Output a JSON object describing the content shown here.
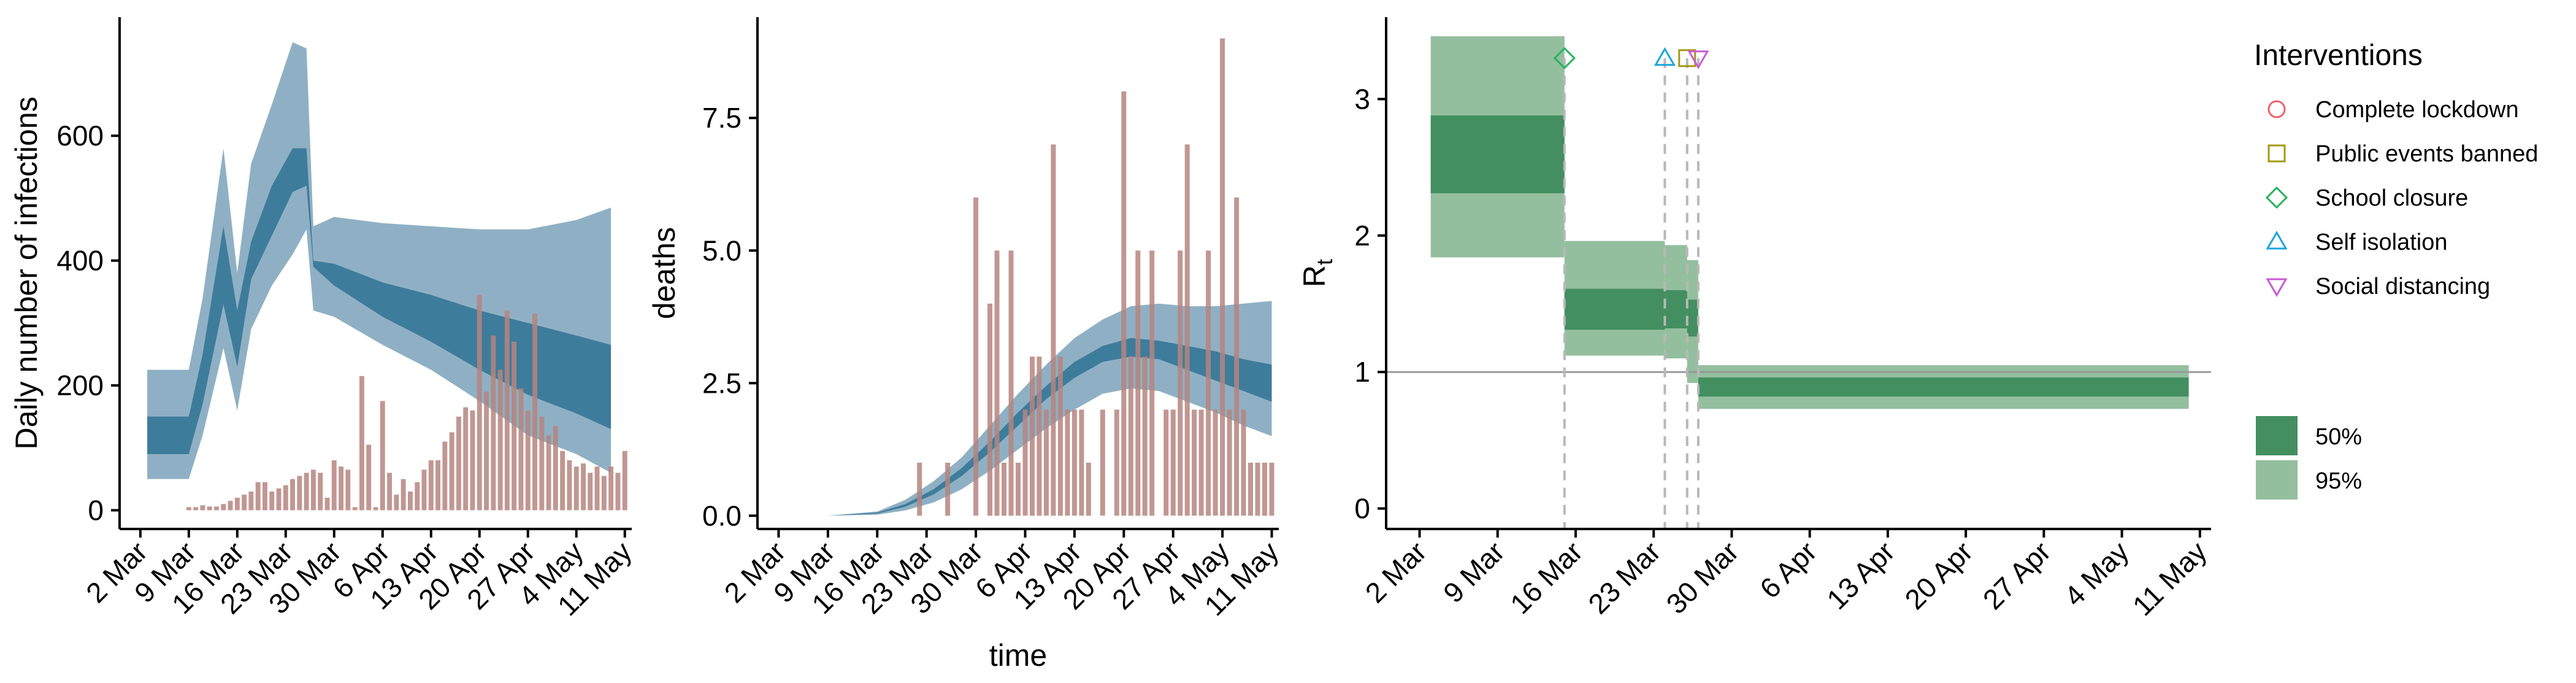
{
  "chart_data": [
    {
      "type": "area",
      "ylabel": "Daily number of infections",
      "xlabel": "",
      "ylim": [
        -30,
        790
      ],
      "yticks": [
        0,
        200,
        400,
        600
      ],
      "xlim": [
        "2020-02-28",
        "2020-05-12"
      ],
      "xticks": [
        "2020-03-02",
        "2020-03-09",
        "2020-03-16",
        "2020-03-23",
        "2020-03-30",
        "2020-04-06",
        "2020-04-13",
        "2020-04-20",
        "2020-04-27",
        "2020-05-04",
        "2020-05-11"
      ],
      "xtick_labels": [
        "2 Mar",
        "9 Mar",
        "16 Mar",
        "23 Mar",
        "30 Mar",
        "6 Apr",
        "13 Apr",
        "20 Apr",
        "27 Apr",
        "4 May",
        "11 May"
      ],
      "colors": {
        "band95": "#8fb0c4",
        "band50": "#3e7c9b",
        "bars": "#b5857f"
      },
      "bands": {
        "dates": [
          "2020-03-03",
          "2020-03-09",
          "2020-03-11",
          "2020-03-14",
          "2020-03-16",
          "2020-03-18",
          "2020-03-21",
          "2020-03-24",
          "2020-03-26",
          "2020-03-27",
          "2020-03-30",
          "2020-04-06",
          "2020-04-13",
          "2020-04-20",
          "2020-04-27",
          "2020-05-04",
          "2020-05-09"
        ],
        "lo95": [
          50,
          50,
          120,
          260,
          160,
          290,
          360,
          410,
          450,
          320,
          310,
          265,
          225,
          175,
          120,
          90,
          60
        ],
        "hi95": [
          225,
          225,
          340,
          580,
          380,
          555,
          650,
          750,
          740,
          455,
          470,
          460,
          455,
          450,
          450,
          465,
          485
        ],
        "lo50": [
          90,
          90,
          170,
          330,
          230,
          370,
          440,
          510,
          520,
          390,
          360,
          310,
          270,
          225,
          185,
          155,
          130
        ],
        "hi50": [
          150,
          150,
          250,
          455,
          320,
          430,
          520,
          580,
          580,
          400,
          395,
          365,
          345,
          320,
          300,
          280,
          265
        ]
      },
      "bars": {
        "dates": [
          "2020-03-09",
          "2020-03-10",
          "2020-03-11",
          "2020-03-12",
          "2020-03-13",
          "2020-03-14",
          "2020-03-15",
          "2020-03-16",
          "2020-03-17",
          "2020-03-18",
          "2020-03-19",
          "2020-03-20",
          "2020-03-21",
          "2020-03-22",
          "2020-03-23",
          "2020-03-24",
          "2020-03-25",
          "2020-03-26",
          "2020-03-27",
          "2020-03-28",
          "2020-03-29",
          "2020-03-30",
          "2020-03-31",
          "2020-04-01",
          "2020-04-02",
          "2020-04-03",
          "2020-04-04",
          "2020-04-05",
          "2020-04-06",
          "2020-04-07",
          "2020-04-08",
          "2020-04-09",
          "2020-04-10",
          "2020-04-11",
          "2020-04-12",
          "2020-04-13",
          "2020-04-14",
          "2020-04-15",
          "2020-04-16",
          "2020-04-17",
          "2020-04-18",
          "2020-04-19",
          "2020-04-20",
          "2020-04-21",
          "2020-04-22",
          "2020-04-23",
          "2020-04-24",
          "2020-04-25",
          "2020-04-26",
          "2020-04-27",
          "2020-04-28",
          "2020-04-29",
          "2020-04-30",
          "2020-05-01",
          "2020-05-02",
          "2020-05-03",
          "2020-05-04",
          "2020-05-05",
          "2020-05-06",
          "2020-05-07",
          "2020-05-08",
          "2020-05-09",
          "2020-05-10",
          "2020-05-11"
        ],
        "values": [
          5,
          5,
          8,
          6,
          6,
          10,
          15,
          20,
          25,
          30,
          45,
          45,
          30,
          35,
          40,
          50,
          55,
          60,
          65,
          60,
          20,
          80,
          70,
          65,
          5,
          215,
          105,
          5,
          175,
          60,
          25,
          50,
          30,
          45,
          65,
          80,
          80,
          110,
          125,
          150,
          165,
          160,
          345,
          190,
          280,
          225,
          320,
          270,
          195,
          160,
          315,
          150,
          120,
          135,
          95,
          80,
          70,
          75,
          60,
          70,
          55,
          70,
          60,
          95
        ]
      }
    },
    {
      "type": "area",
      "ylabel": "deaths",
      "xlabel": "time",
      "ylim": [
        -0.25,
        9.4
      ],
      "yticks": [
        0,
        2.5,
        5,
        7.5
      ],
      "ytick_labels": [
        "0.0",
        "2.5",
        "5.0",
        "7.5"
      ],
      "xlim": [
        "2020-02-28",
        "2020-05-12"
      ],
      "xticks": [
        "2020-03-02",
        "2020-03-09",
        "2020-03-16",
        "2020-03-23",
        "2020-03-30",
        "2020-04-06",
        "2020-04-13",
        "2020-04-20",
        "2020-04-27",
        "2020-05-04",
        "2020-05-11"
      ],
      "xtick_labels": [
        "2 Mar",
        "9 Mar",
        "16 Mar",
        "23 Mar",
        "30 Mar",
        "6 Apr",
        "13 Apr",
        "20 Apr",
        "27 Apr",
        "4 May",
        "11 May"
      ],
      "colors": {
        "band95": "#8fb0c4",
        "band50": "#3e7c9b",
        "bars": "#b5857f"
      },
      "bands": {
        "dates": [
          "2020-03-09",
          "2020-03-16",
          "2020-03-20",
          "2020-03-24",
          "2020-03-28",
          "2020-04-01",
          "2020-04-05",
          "2020-04-09",
          "2020-04-13",
          "2020-04-17",
          "2020-04-21",
          "2020-04-25",
          "2020-04-29",
          "2020-05-03",
          "2020-05-07",
          "2020-05-11"
        ],
        "lo95": [
          0,
          0.02,
          0.1,
          0.25,
          0.5,
          0.85,
          1.25,
          1.65,
          2.0,
          2.3,
          2.4,
          2.35,
          2.15,
          1.95,
          1.7,
          1.5
        ],
        "hi95": [
          0,
          0.08,
          0.3,
          0.65,
          1.1,
          1.7,
          2.3,
          2.85,
          3.35,
          3.7,
          3.95,
          4.0,
          3.95,
          3.95,
          4.0,
          4.05
        ],
        "lo50": [
          0,
          0.04,
          0.17,
          0.4,
          0.75,
          1.2,
          1.7,
          2.2,
          2.6,
          2.9,
          3.0,
          2.95,
          2.75,
          2.55,
          2.35,
          2.15
        ],
        "hi50": [
          0,
          0.06,
          0.22,
          0.5,
          0.9,
          1.4,
          1.95,
          2.45,
          2.9,
          3.2,
          3.35,
          3.3,
          3.2,
          3.1,
          2.95,
          2.85
        ]
      },
      "bars": {
        "dates": [
          "2020-03-22",
          "2020-03-26",
          "2020-03-30",
          "2020-04-01",
          "2020-04-02",
          "2020-04-03",
          "2020-04-04",
          "2020-04-05",
          "2020-04-06",
          "2020-04-07",
          "2020-04-08",
          "2020-04-09",
          "2020-04-10",
          "2020-04-11",
          "2020-04-12",
          "2020-04-13",
          "2020-04-14",
          "2020-04-15",
          "2020-04-17",
          "2020-04-19",
          "2020-04-20",
          "2020-04-21",
          "2020-04-22",
          "2020-04-23",
          "2020-04-24",
          "2020-04-26",
          "2020-04-27",
          "2020-04-28",
          "2020-04-29",
          "2020-04-30",
          "2020-05-01",
          "2020-05-02",
          "2020-05-03",
          "2020-05-04",
          "2020-05-05",
          "2020-05-06",
          "2020-05-07",
          "2020-05-08",
          "2020-05-09",
          "2020-05-10",
          "2020-05-11"
        ],
        "values": [
          1,
          1,
          6,
          4,
          5,
          1,
          5,
          1,
          2,
          3,
          3,
          2,
          7,
          3,
          2,
          2,
          2,
          1,
          2,
          2,
          8,
          3,
          5,
          3,
          5,
          2,
          2,
          5,
          7,
          2,
          2,
          5,
          2,
          9,
          2,
          6,
          2,
          1,
          1,
          1,
          1
        ]
      }
    },
    {
      "type": "area",
      "ylabel": "R",
      "ylabel_subscript": "t",
      "xlabel": "",
      "ylim": [
        -0.15,
        3.6
      ],
      "yticks": [
        0,
        1,
        2,
        3
      ],
      "xlim": [
        "2020-02-28",
        "2020-05-12"
      ],
      "xticks": [
        "2020-03-02",
        "2020-03-09",
        "2020-03-16",
        "2020-03-23",
        "2020-03-30",
        "2020-04-06",
        "2020-04-13",
        "2020-04-20",
        "2020-04-27",
        "2020-05-04",
        "2020-05-11"
      ],
      "xtick_labels": [
        "2 Mar",
        "9 Mar",
        "16 Mar",
        "23 Mar",
        "30 Mar",
        "6 Apr",
        "13 Apr",
        "20 Apr",
        "27 Apr",
        "4 May",
        "11 May"
      ],
      "reference_line": 1,
      "colors": {
        "band95": "#93bf9e",
        "band50": "#438f60",
        "refline": "#999999",
        "vline": "#b8b8b8"
      },
      "segments": [
        {
          "start": "2020-03-03",
          "end": "2020-03-15",
          "lo95": 1.84,
          "hi95": 3.46,
          "lo50": 2.31,
          "hi50": 2.88
        },
        {
          "start": "2020-03-15",
          "end": "2020-03-24",
          "lo95": 1.12,
          "hi95": 1.96,
          "lo50": 1.31,
          "hi50": 1.61
        },
        {
          "start": "2020-03-24",
          "end": "2020-03-26",
          "lo95": 1.1,
          "hi95": 1.93,
          "lo50": 1.32,
          "hi50": 1.6
        },
        {
          "start": "2020-03-26",
          "end": "2020-03-27",
          "lo95": 0.92,
          "hi95": 1.82,
          "lo50": 1.26,
          "hi50": 1.53
        },
        {
          "start": "2020-03-27",
          "end": "2020-05-10",
          "lo95": 0.73,
          "hi95": 1.05,
          "lo50": 0.82,
          "hi50": 0.96
        }
      ],
      "interventions": [
        {
          "name": "Complete lockdown",
          "date": null,
          "y": null,
          "shape": "circle",
          "color": "#f0616a"
        },
        {
          "name": "Public events banned",
          "date": "2020-03-26",
          "y": 3.3,
          "shape": "square",
          "color": "#a39a14"
        },
        {
          "name": "School closure",
          "date": "2020-03-15",
          "y": 3.3,
          "shape": "diamond",
          "color": "#27b35e"
        },
        {
          "name": "Self isolation",
          "date": "2020-03-24",
          "y": 3.3,
          "shape": "triangle-up",
          "color": "#1aa6da"
        },
        {
          "name": "Social distancing",
          "date": "2020-03-27",
          "y": 3.3,
          "shape": "triangle-down",
          "color": "#c95bd6"
        }
      ],
      "legend": {
        "position": "right",
        "title": "Interventions",
        "ci_labels": [
          "50%",
          "95%"
        ]
      }
    }
  ]
}
